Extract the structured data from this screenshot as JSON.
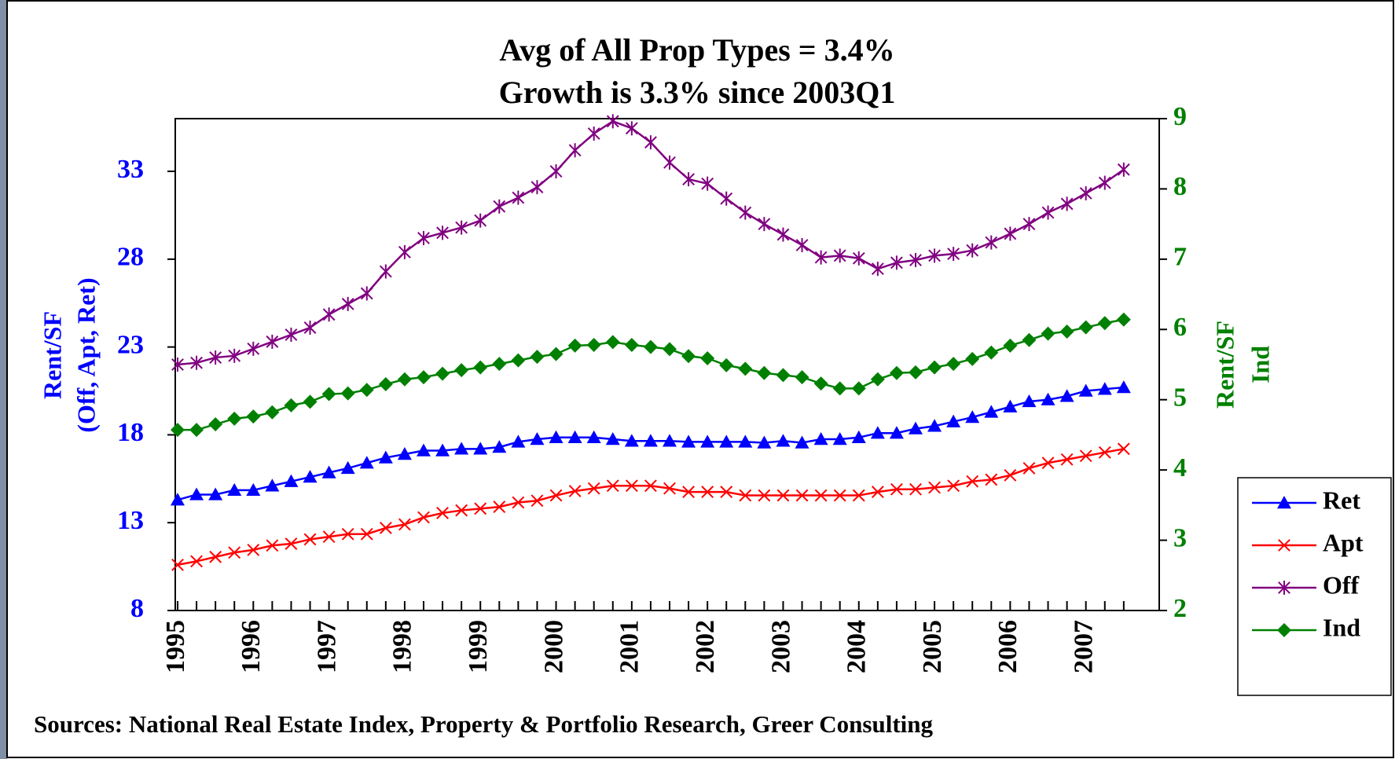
{
  "chart_data": {
    "type": "line",
    "title": [
      "Avg of All Prop Types = 3.4%",
      "Growth is 3.3% since 2003Q1"
    ],
    "y_label": [
      "Rent/SF",
      "(Off, Apt, Ret)"
    ],
    "y2_label": [
      "Rent/SF",
      "Ind"
    ],
    "source": "Sources: National Real Estate Index, Property & Portfolio Research, Greer Consulting",
    "categories": [
      "1995",
      null,
      null,
      null,
      "1996",
      null,
      null,
      null,
      "1997",
      null,
      null,
      null,
      "1998",
      null,
      null,
      null,
      "1999",
      null,
      null,
      null,
      "2000",
      null,
      null,
      null,
      "2001",
      null,
      null,
      null,
      "2002",
      null,
      null,
      null,
      "2003",
      null,
      null,
      null,
      "2004",
      null,
      null,
      null,
      "2005",
      null,
      null,
      null,
      "2006",
      null,
      null,
      null,
      "2007",
      null,
      null
    ],
    "ylim": [
      8,
      36
    ],
    "yticks": [
      8,
      13,
      18,
      23,
      28,
      33
    ],
    "y2lim": [
      2,
      9
    ],
    "y2ticks": [
      2,
      3,
      4,
      5,
      6,
      7,
      8,
      9
    ],
    "legend": "right",
    "series": [
      {
        "name": "Ret",
        "color": "#0000ff",
        "marker": "triangle",
        "values": [
          14.3,
          14.6,
          14.6,
          14.85,
          14.85,
          15.1,
          15.35,
          15.6,
          15.85,
          16.1,
          16.4,
          16.7,
          16.9,
          17.1,
          17.1,
          17.2,
          17.2,
          17.3,
          17.6,
          17.75,
          17.85,
          17.85,
          17.85,
          17.75,
          17.65,
          17.65,
          17.65,
          17.6,
          17.6,
          17.6,
          17.6,
          17.55,
          17.65,
          17.55,
          17.75,
          17.75,
          17.85,
          18.1,
          18.1,
          18.35,
          18.5,
          18.75,
          19.0,
          19.3,
          19.6,
          19.9,
          20.0,
          20.2,
          20.5,
          20.6,
          20.7
        ]
      },
      {
        "name": "Apt",
        "color": "#ff0000",
        "marker": "x",
        "values": [
          10.6,
          10.8,
          11.05,
          11.3,
          11.45,
          11.7,
          11.8,
          12.05,
          12.2,
          12.35,
          12.35,
          12.7,
          12.9,
          13.3,
          13.55,
          13.7,
          13.8,
          13.9,
          14.15,
          14.25,
          14.55,
          14.8,
          14.95,
          15.1,
          15.1,
          15.1,
          14.95,
          14.75,
          14.75,
          14.75,
          14.55,
          14.55,
          14.55,
          14.55,
          14.55,
          14.55,
          14.55,
          14.75,
          14.9,
          14.9,
          15.0,
          15.1,
          15.35,
          15.45,
          15.7,
          16.1,
          16.4,
          16.6,
          16.8,
          17.0,
          17.2
        ]
      },
      {
        "name": "Off",
        "color": "#800080",
        "marker": "asterisk",
        "values": [
          22.0,
          22.1,
          22.4,
          22.5,
          22.9,
          23.3,
          23.7,
          24.1,
          24.85,
          25.45,
          26.05,
          27.3,
          28.4,
          29.2,
          29.5,
          29.8,
          30.2,
          31.0,
          31.5,
          32.1,
          33.0,
          34.2,
          35.15,
          35.85,
          35.45,
          34.65,
          33.5,
          32.55,
          32.3,
          31.45,
          30.65,
          30.0,
          29.4,
          28.8,
          28.1,
          28.2,
          28.05,
          27.45,
          27.8,
          27.95,
          28.2,
          28.3,
          28.5,
          28.95,
          29.45,
          30.0,
          30.65,
          31.15,
          31.75,
          32.35,
          33.1
        ]
      },
      {
        "name": "Ind",
        "color": "#008000",
        "marker": "diamond",
        "axis": "y2",
        "values": [
          4.57,
          4.57,
          4.65,
          4.73,
          4.76,
          4.82,
          4.92,
          4.97,
          5.08,
          5.09,
          5.14,
          5.22,
          5.29,
          5.32,
          5.37,
          5.42,
          5.46,
          5.51,
          5.56,
          5.61,
          5.65,
          5.77,
          5.78,
          5.82,
          5.78,
          5.75,
          5.72,
          5.62,
          5.59,
          5.49,
          5.44,
          5.38,
          5.35,
          5.32,
          5.23,
          5.16,
          5.16,
          5.29,
          5.38,
          5.39,
          5.46,
          5.51,
          5.58,
          5.67,
          5.77,
          5.85,
          5.94,
          5.97,
          6.03,
          6.09,
          6.14
        ]
      }
    ]
  }
}
